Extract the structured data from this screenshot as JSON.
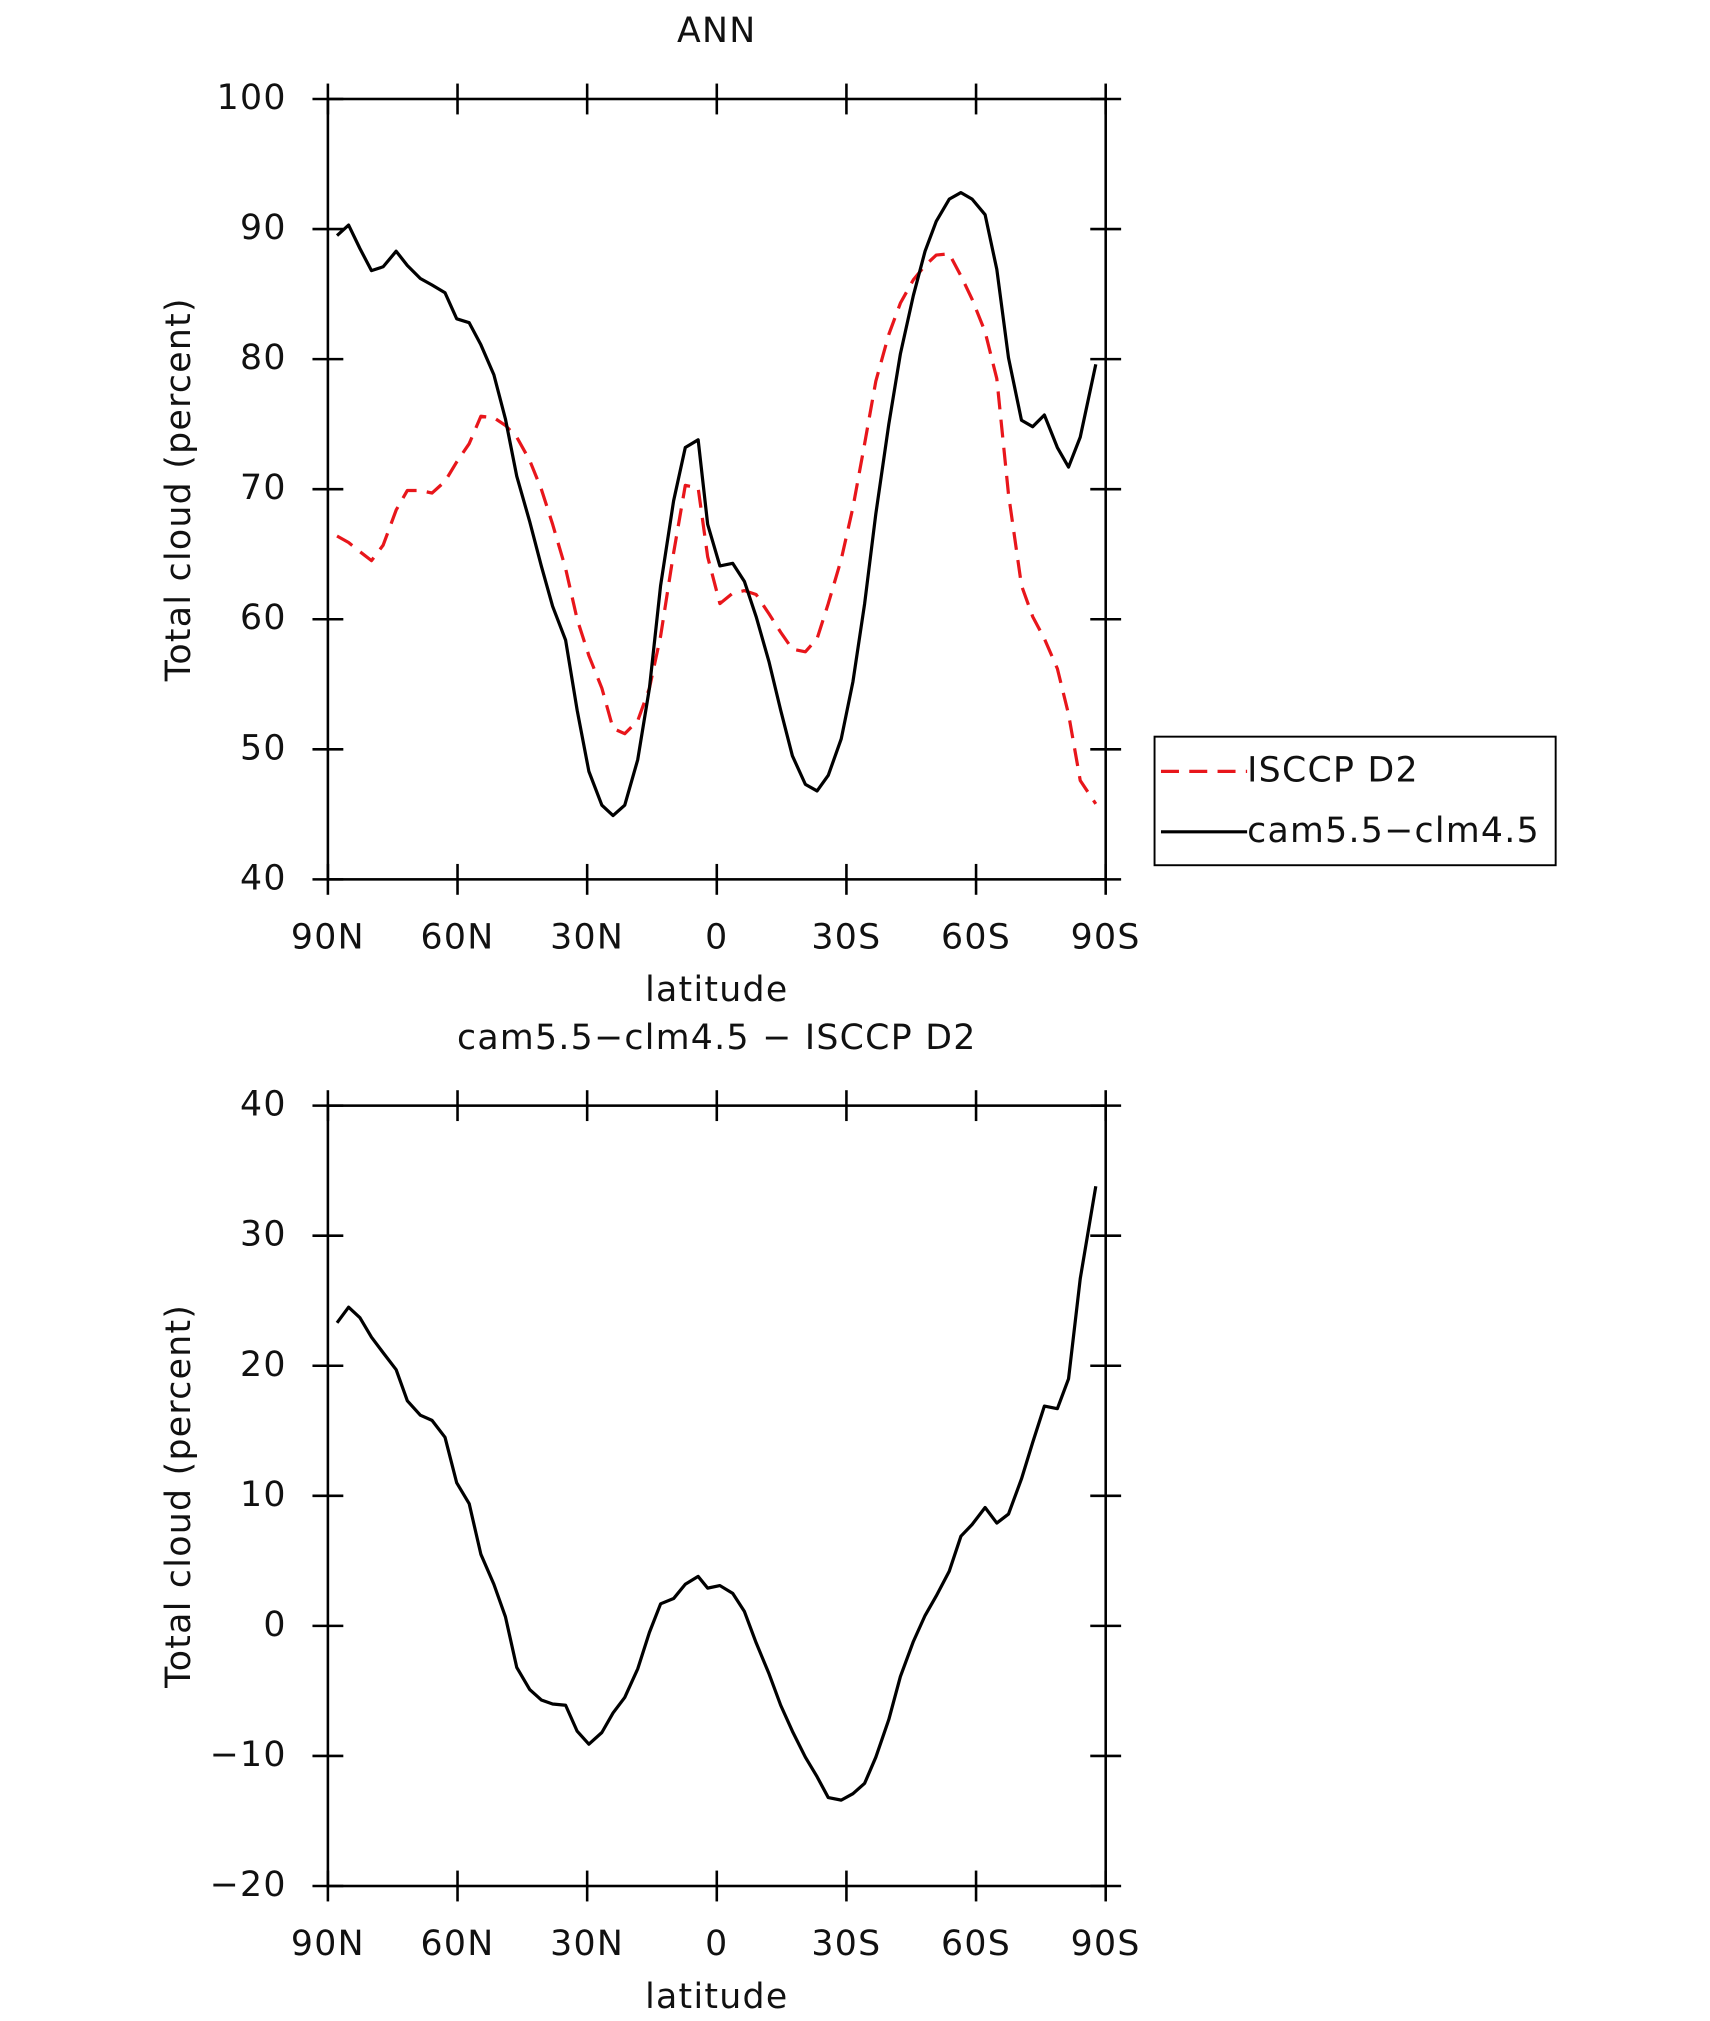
{
  "chart_data": [
    {
      "type": "line",
      "title": "ANN",
      "xlabel": "latitude",
      "ylabel": "Total cloud (percent)",
      "x": [
        87.9,
        85.2,
        82.6,
        79.9,
        77.2,
        74.2,
        71.6,
        68.6,
        65.9,
        62.9,
        60.2,
        57.3,
        54.6,
        51.6,
        48.9,
        46.3,
        43.3,
        40.6,
        38.0,
        35.0,
        32.3,
        29.6,
        26.6,
        24.0,
        21.3,
        18.3,
        15.6,
        13.0,
        10.0,
        7.3,
        4.3,
        2.1,
        -0.7,
        -3.7,
        -6.4,
        -9.1,
        -12.1,
        -14.8,
        -17.5,
        -20.5,
        -23.2,
        -25.8,
        -28.8,
        -31.5,
        -34.2,
        -36.8,
        -39.8,
        -42.5,
        -45.5,
        -48.2,
        -50.8,
        -53.8,
        -56.5,
        -59.1,
        -62.1,
        -64.8,
        -67.5,
        -70.5,
        -73.1,
        -75.8,
        -78.8,
        -81.4,
        -84.1,
        -87.7
      ],
      "series": [
        {
          "name": "ISCCP D2",
          "color": "#e8161b",
          "dash": true,
          "values": [
            66.4,
            65.9,
            65.2,
            64.5,
            65.7,
            68.4,
            69.9,
            69.9,
            69.7,
            70.6,
            72.1,
            73.5,
            75.6,
            75.5,
            74.9,
            74.0,
            72.2,
            70.0,
            67.3,
            63.9,
            60.0,
            57.2,
            54.7,
            51.6,
            51.2,
            52.2,
            54.7,
            58.7,
            65.1,
            70.3,
            70.1,
            64.8,
            61.2,
            62.0,
            62.2,
            61.9,
            60.4,
            59.0,
            57.7,
            57.5,
            58.5,
            61.2,
            64.6,
            68.6,
            73.5,
            78.3,
            81.9,
            84.3,
            86.1,
            87.2,
            88.0,
            88.1,
            86.4,
            84.6,
            82.1,
            78.5,
            69.6,
            62.6,
            60.2,
            58.5,
            56.2,
            52.7,
            47.6,
            45.8
          ]
        },
        {
          "name": "cam5.5−clm4.5",
          "color": "#000000",
          "dash": false,
          "values": [
            89.5,
            90.3,
            88.5,
            86.8,
            87.1,
            88.3,
            87.2,
            86.2,
            85.7,
            85.1,
            83.1,
            82.8,
            81.1,
            78.8,
            75.4,
            71.0,
            67.5,
            64.1,
            61.0,
            58.4,
            53.0,
            48.3,
            45.7,
            44.9,
            45.7,
            49.2,
            54.7,
            62.6,
            69.1,
            73.2,
            73.8,
            67.3,
            64.1,
            64.3,
            62.9,
            60.2,
            56.7,
            53.0,
            49.5,
            47.3,
            46.8,
            48.0,
            50.8,
            55.2,
            61.2,
            68.1,
            75.0,
            80.4,
            84.9,
            88.3,
            90.6,
            92.3,
            92.8,
            92.3,
            91.1,
            86.9,
            80.1,
            75.3,
            74.8,
            75.7,
            73.2,
            71.7,
            74.0,
            79.6
          ]
        }
      ],
      "xlim": [
        90,
        -90
      ],
      "xticks": [
        {
          "value": 90,
          "label": "90N"
        },
        {
          "value": 60,
          "label": "60N"
        },
        {
          "value": 30,
          "label": "30N"
        },
        0,
        {
          "value": -30,
          "label": "30S"
        },
        {
          "value": -60,
          "label": "60S"
        },
        {
          "value": -90,
          "label": "90S"
        }
      ],
      "ylim": [
        40,
        100
      ],
      "yticks": [
        40,
        50,
        60,
        70,
        80,
        90,
        100
      ],
      "legend": "outside-right"
    },
    {
      "type": "line",
      "title": "cam5.5−clm4.5 − ISCCP D2",
      "xlabel": "latitude",
      "ylabel": "Total cloud (percent)",
      "x": [
        87.9,
        85.2,
        82.6,
        79.9,
        77.2,
        74.2,
        71.6,
        68.6,
        65.9,
        62.9,
        60.2,
        57.3,
        54.6,
        51.6,
        48.9,
        46.3,
        43.3,
        40.6,
        38.0,
        35.0,
        32.3,
        29.6,
        26.6,
        24.0,
        21.3,
        18.3,
        15.6,
        13.0,
        10.0,
        7.3,
        4.3,
        2.1,
        -0.7,
        -3.7,
        -6.4,
        -9.1,
        -12.1,
        -14.8,
        -17.5,
        -20.5,
        -23.2,
        -25.8,
        -28.8,
        -31.5,
        -34.2,
        -36.8,
        -39.8,
        -42.5,
        -45.5,
        -48.2,
        -50.8,
        -53.8,
        -56.5,
        -59.1,
        -62.1,
        -64.8,
        -67.5,
        -70.5,
        -73.1,
        -75.8,
        -78.8,
        -81.4,
        -84.1,
        -87.7
      ],
      "series": [
        {
          "color": "#000000",
          "dash": false,
          "values": [
            23.3,
            24.5,
            23.7,
            22.2,
            21.0,
            19.7,
            17.3,
            16.2,
            15.8,
            14.5,
            11.0,
            9.4,
            5.5,
            3.2,
            0.7,
            -3.2,
            -4.9,
            -5.7,
            -6.0,
            -6.1,
            -8.1,
            -9.1,
            -8.2,
            -6.7,
            -5.5,
            -3.3,
            -0.5,
            1.7,
            2.1,
            3.2,
            3.8,
            2.9,
            3.1,
            2.5,
            1.1,
            -1.3,
            -3.7,
            -6.1,
            -8.1,
            -10.1,
            -11.6,
            -13.2,
            -13.4,
            -12.9,
            -12.1,
            -10.1,
            -7.2,
            -3.9,
            -1.2,
            0.8,
            2.3,
            4.2,
            6.9,
            7.8,
            9.1,
            7.9,
            8.6,
            11.3,
            14.1,
            16.9,
            16.7,
            19.0,
            26.7,
            33.8
          ]
        }
      ],
      "xlim": [
        90,
        -90
      ],
      "xticks": [
        {
          "value": 90,
          "label": "90N"
        },
        {
          "value": 60,
          "label": "60N"
        },
        {
          "value": 30,
          "label": "30N"
        },
        0,
        {
          "value": -30,
          "label": "30S"
        },
        {
          "value": -60,
          "label": "60S"
        },
        {
          "value": -90,
          "label": "90S"
        }
      ],
      "ylim": [
        -20,
        40
      ],
      "yticks": [
        {
          "value": -20,
          "label": "−20"
        },
        {
          "value": -10,
          "label": "−10"
        },
        0,
        10,
        20,
        30,
        40
      ]
    }
  ]
}
